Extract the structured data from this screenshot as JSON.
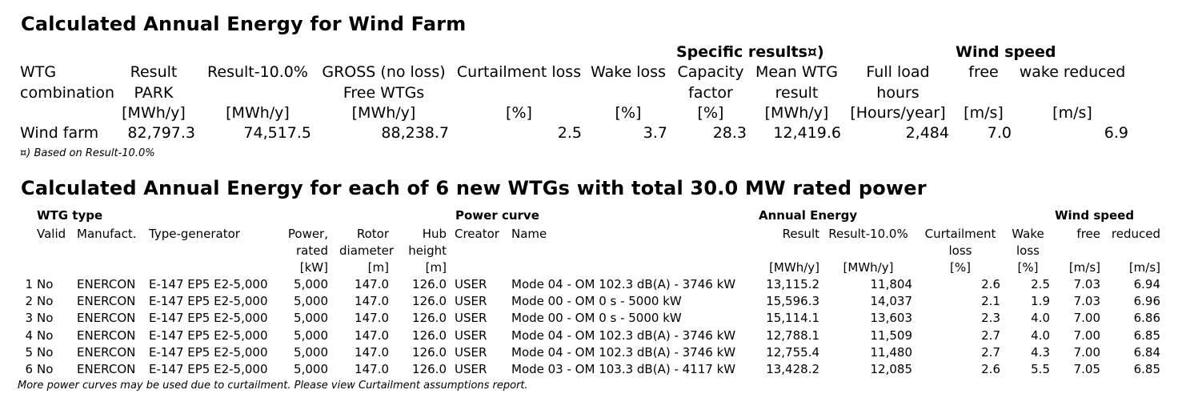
{
  "farm_section": {
    "title": "Calculated Annual Energy for Wind Farm",
    "group_headers": {
      "specific": "Specific results¤)",
      "wind_speed": "Wind speed"
    },
    "columns": [
      {
        "lines": [
          "WTG",
          "combination",
          ""
        ]
      },
      {
        "lines": [
          "Result",
          "PARK",
          "[MWh/y]"
        ]
      },
      {
        "lines": [
          "Result-10.0%",
          "",
          "[MWh/y]"
        ]
      },
      {
        "lines": [
          "GROSS (no loss)",
          "Free WTGs",
          "[MWh/y]"
        ]
      },
      {
        "lines": [
          "Curtailment loss",
          "",
          "[%]"
        ]
      },
      {
        "lines": [
          "Wake loss",
          "",
          "[%]"
        ]
      },
      {
        "lines": [
          "Capacity",
          "factor",
          "[%]"
        ]
      },
      {
        "lines": [
          "Mean WTG",
          "result",
          "[MWh/y]"
        ]
      },
      {
        "lines": [
          "Full load",
          "hours",
          "[Hours/year]"
        ]
      },
      {
        "lines": [
          "free",
          "",
          "[m/s]"
        ]
      },
      {
        "lines": [
          "wake reduced",
          "",
          "[m/s]"
        ]
      }
    ],
    "row": [
      "Wind farm",
      "82,797.3",
      "74,517.5",
      "88,238.7",
      "2.5",
      "3.7",
      "28.3",
      "12,419.6",
      "2,484",
      "7.0",
      "6.9"
    ],
    "footnote": "¤) Based on Result-10.0%"
  },
  "wtg_section": {
    "title": "Calculated Annual Energy for each of 6 new WTGs with total 30.0 MW rated power",
    "group_headers": {
      "wtg_type": "WTG type",
      "power_curve": "Power curve",
      "annual_energy": "Annual Energy",
      "wind_speed": "Wind speed"
    },
    "columns": [
      {
        "lines": [
          "",
          "",
          ""
        ]
      },
      {
        "lines": [
          "Valid",
          "",
          ""
        ]
      },
      {
        "lines": [
          "Manufact.",
          "",
          ""
        ]
      },
      {
        "lines": [
          "Type-generator",
          "",
          ""
        ]
      },
      {
        "lines": [
          "Power,",
          "rated",
          "[kW]"
        ]
      },
      {
        "lines": [
          "Rotor",
          "diameter",
          "[m]"
        ]
      },
      {
        "lines": [
          "Hub",
          "height",
          "[m]"
        ]
      },
      {
        "lines": [
          "Creator",
          "",
          ""
        ]
      },
      {
        "lines": [
          "Name",
          "",
          ""
        ]
      },
      {
        "lines": [
          "Result",
          "",
          "[MWh/y]"
        ]
      },
      {
        "lines": [
          "Result-10.0%",
          "",
          "[MWh/y]"
        ]
      },
      {
        "lines": [
          "Curtailment",
          "loss",
          "[%]"
        ]
      },
      {
        "lines": [
          "Wake",
          "loss",
          "[%]"
        ]
      },
      {
        "lines": [
          "free",
          "",
          "[m/s]"
        ]
      },
      {
        "lines": [
          "reduced",
          "",
          "[m/s]"
        ]
      }
    ],
    "rows": [
      [
        "1",
        "No",
        "ENERCON",
        "E-147 EP5 E2-5,000",
        "5,000",
        "147.0",
        "126.0",
        "USER",
        "Mode 04 - OM 102.3 dB(A) - 3746 kW",
        "13,115.2",
        "11,804",
        "2.6",
        "2.5",
        "7.03",
        "6.94"
      ],
      [
        "2",
        "No",
        "ENERCON",
        "E-147 EP5 E2-5,000",
        "5,000",
        "147.0",
        "126.0",
        "USER",
        "Mode 00 - OM 0 s - 5000 kW",
        "15,596.3",
        "14,037",
        "2.1",
        "1.9",
        "7.03",
        "6.96"
      ],
      [
        "3",
        "No",
        "ENERCON",
        "E-147 EP5 E2-5,000",
        "5,000",
        "147.0",
        "126.0",
        "USER",
        "Mode 00 - OM 0 s - 5000 kW",
        "15,114.1",
        "13,603",
        "2.3",
        "4.0",
        "7.00",
        "6.86"
      ],
      [
        "4",
        "No",
        "ENERCON",
        "E-147 EP5 E2-5,000",
        "5,000",
        "147.0",
        "126.0",
        "USER",
        "Mode 04 - OM 102.3 dB(A) - 3746 kW",
        "12,788.1",
        "11,509",
        "2.7",
        "4.0",
        "7.00",
        "6.85"
      ],
      [
        "5",
        "No",
        "ENERCON",
        "E-147 EP5 E2-5,000",
        "5,000",
        "147.0",
        "126.0",
        "USER",
        "Mode 04 - OM 102.3 dB(A) - 3746 kW",
        "12,755.4",
        "11,480",
        "2.7",
        "4.3",
        "7.00",
        "6.84"
      ],
      [
        "6",
        "No",
        "ENERCON",
        "E-147 EP5 E2-5,000",
        "5,000",
        "147.0",
        "126.0",
        "USER",
        "Mode 03 - OM 103.3 dB(A) - 4117 kW",
        "13,428.2",
        "12,085",
        "2.6",
        "5.5",
        "7.05",
        "6.85"
      ]
    ],
    "footnote": "More power curves may be used due to curtailment. Please view Curtailment assumptions report."
  }
}
